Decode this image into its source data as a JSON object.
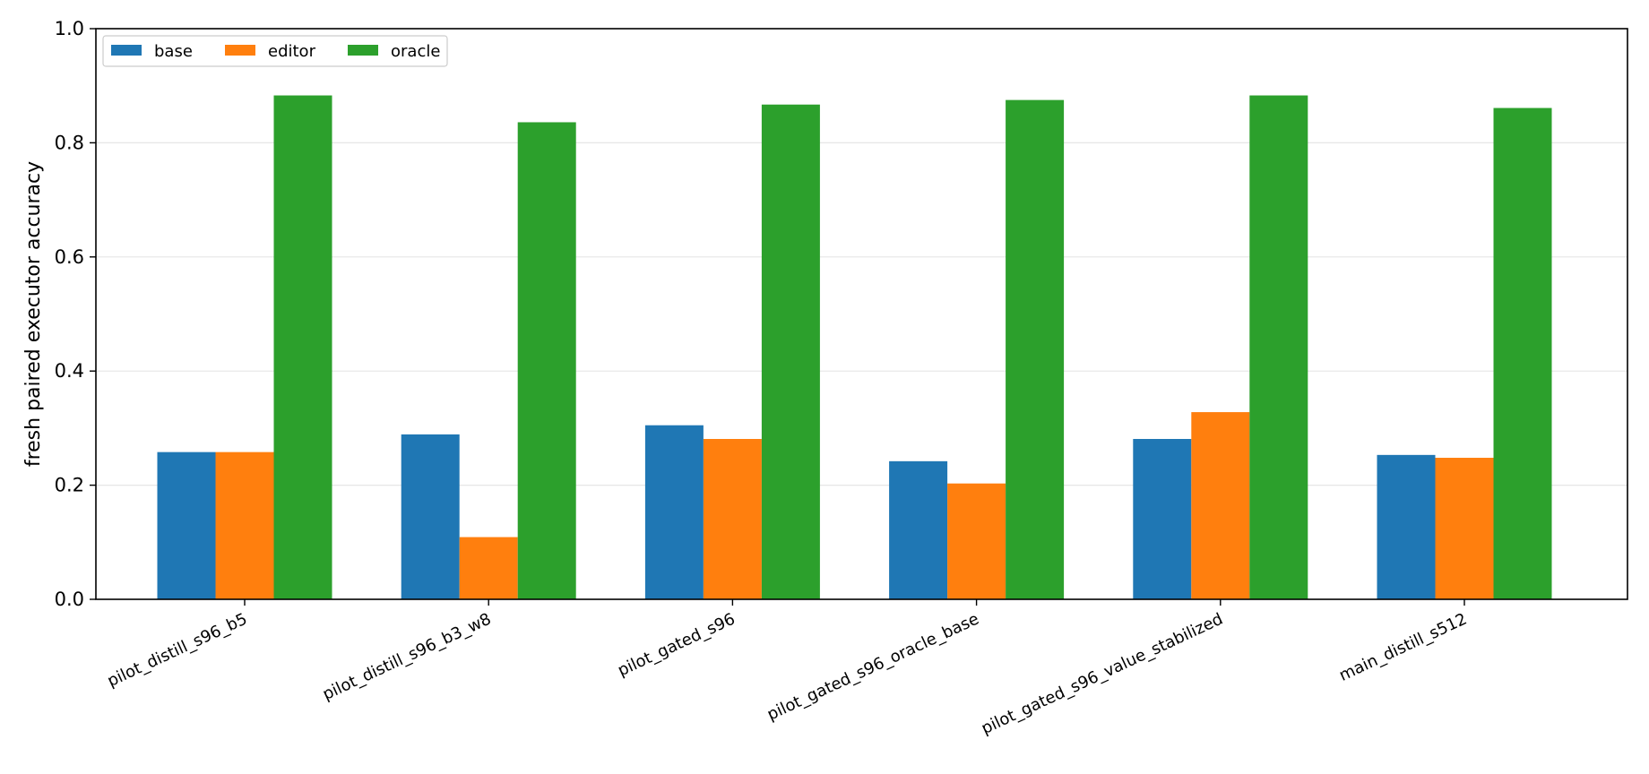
{
  "chart_data": {
    "type": "bar",
    "categories": [
      "pilot_distill_s96_b5",
      "pilot_distill_s96_b3_w8",
      "pilot_gated_s96",
      "pilot_gated_s96_oracle_base",
      "pilot_gated_s96_value_stabilized",
      "main_distill_s512"
    ],
    "series": [
      {
        "name": "base",
        "color": "#1f77b4",
        "values": [
          0.258,
          0.289,
          0.305,
          0.242,
          0.281,
          0.253
        ]
      },
      {
        "name": "editor",
        "color": "#ff7f0e",
        "values": [
          0.258,
          0.109,
          0.281,
          0.203,
          0.328,
          0.248
        ]
      },
      {
        "name": "oracle",
        "color": "#2ca02c",
        "values": [
          0.883,
          0.836,
          0.867,
          0.875,
          0.883,
          0.861
        ]
      }
    ],
    "title": "",
    "xlabel": "",
    "ylabel": "fresh paired executor accuracy",
    "ylim": [
      0,
      1.0
    ],
    "yticks": [
      0.0,
      0.2,
      0.4,
      0.6,
      0.8,
      1.0
    ],
    "ytick_labels": [
      "0.0",
      "0.2",
      "0.4",
      "0.6",
      "0.8",
      "1.0"
    ],
    "grid": "y",
    "legend_position": "top-left",
    "legend_columns": 3
  }
}
